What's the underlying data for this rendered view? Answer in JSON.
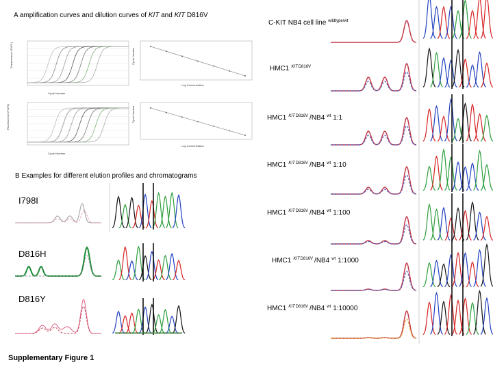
{
  "panel_a": {
    "parts": [
      "A amplification curves and dilution curves of ",
      "KIT",
      " and ",
      "KIT",
      " D816V"
    ],
    "x_axis_amplification": "Cycle Number",
    "y_axis_amplification": "Fluorescence (F1/F1)",
    "x_axis_dilution": "Log Concentration",
    "y_axis_dilution": "Cycle Number"
  },
  "panel_b": {
    "title": "B Examples for different elution profiles and chromatograms",
    "mutations": [
      "I798I",
      "D816H",
      "D816Y"
    ]
  },
  "samples": [
    {
      "cell": "C-KIT NB4 cell line",
      "sup": "wildtype/wt"
    },
    {
      "cell": "HMC1",
      "gene": "KIT",
      "mutation": "D816V"
    },
    {
      "cell": "HMC1",
      "gene": "KIT",
      "mutation": "D816V",
      "partner": "/NB4",
      "partner_sup": "wt",
      "ratio": "1:1"
    },
    {
      "cell": "HMC1",
      "gene": "KIT",
      "mutation": "D816V",
      "partner": "/NB4",
      "partner_sup": "wt",
      "ratio": "1:10"
    },
    {
      "cell": "HMC1",
      "gene": "KIT",
      "mutation": "D816V",
      "partner": "/NB4",
      "partner_sup": "wt",
      "ratio": "1:100"
    },
    {
      "cell": "HMC1",
      "gene": "KIT",
      "mutation": "D816V",
      "partner": "/NB4",
      "partner_sup": "wt",
      "ratio": "1:1000"
    },
    {
      "cell": "HMC1",
      "gene": "KIT",
      "mutation": "D816V",
      "partner": "/NB4",
      "partner_sup": "wt",
      "ratio": "1:10000"
    }
  ],
  "caption": "Supplementary Figure 1"
}
